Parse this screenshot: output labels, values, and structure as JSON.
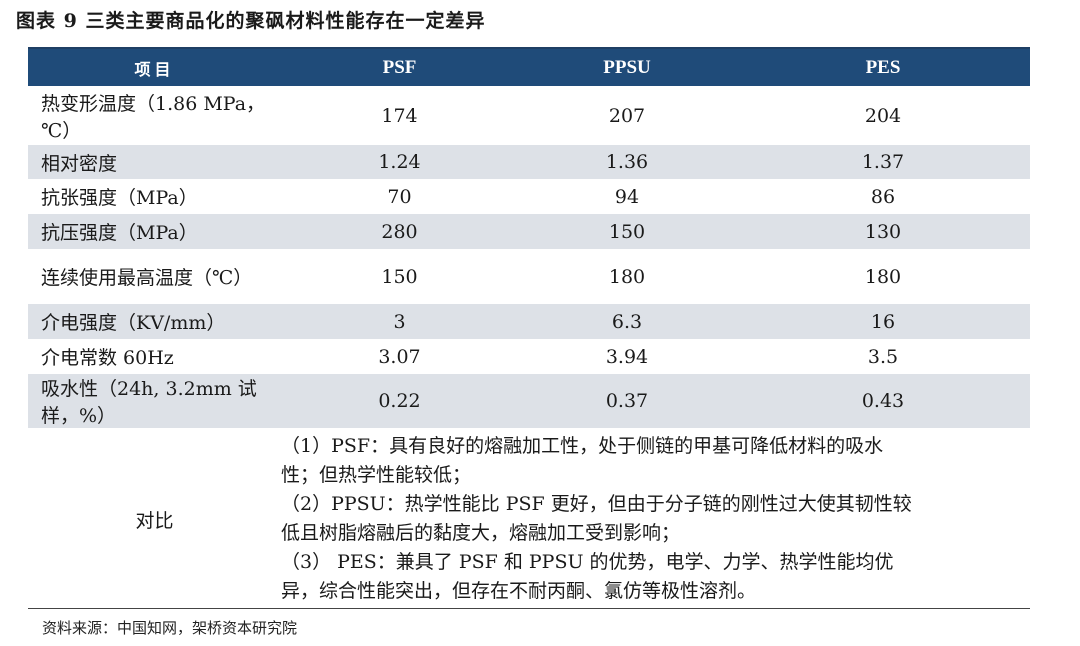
{
  "title": "图表 9 三类主要商品化的聚砜材料性能存在一定差异",
  "table": {
    "headers": [
      "项目",
      "PSF",
      "PPSU",
      "PES"
    ],
    "rows": [
      {
        "label": "热变形温度（1.86 MPa，℃）",
        "psf": "174",
        "ppsu": "207",
        "pes": "204"
      },
      {
        "label": "相对密度",
        "psf": "1.24",
        "ppsu": "1.36",
        "pes": "1.37"
      },
      {
        "label": "抗张强度（MPa）",
        "psf": "70",
        "ppsu": "94",
        "pes": "86"
      },
      {
        "label": "抗压强度（MPa）",
        "psf": "280",
        "ppsu": "150",
        "pes": "130"
      },
      {
        "label": "连续使用最高温度（℃）",
        "psf": "150",
        "ppsu": "180",
        "pes": "180"
      },
      {
        "label": "介电强度（KV/mm）",
        "psf": "3",
        "ppsu": "6.3",
        "pes": "16"
      },
      {
        "label": "介电常数 60Hz",
        "psf": "3.07",
        "ppsu": "3.94",
        "pes": "3.5"
      },
      {
        "label": "吸水性（24h, 3.2mm 试样，%）",
        "psf": "0.22",
        "ppsu": "0.37",
        "pes": "0.43"
      }
    ],
    "comparison": {
      "label": "对比",
      "lines": [
        "（1）PSF：具有良好的熔融加工性，处于侧链的甲基可降低材料的吸水",
        "性；但热学性能较低；",
        "（2）PPSU：热学性能比 PSF 更好，但由于分子链的刚性过大使其韧性较",
        "低且树脂熔融后的黏度大，熔融加工受到影响；",
        "（3）  PES：兼具了 PSF 和 PPSU 的优势，电学、力学、热学性能均优",
        "异，综合性能突出，但存在不耐丙酮、氯仿等极性溶剂。"
      ]
    }
  },
  "source": "资料来源：中国知网，架桥资本研究院"
}
